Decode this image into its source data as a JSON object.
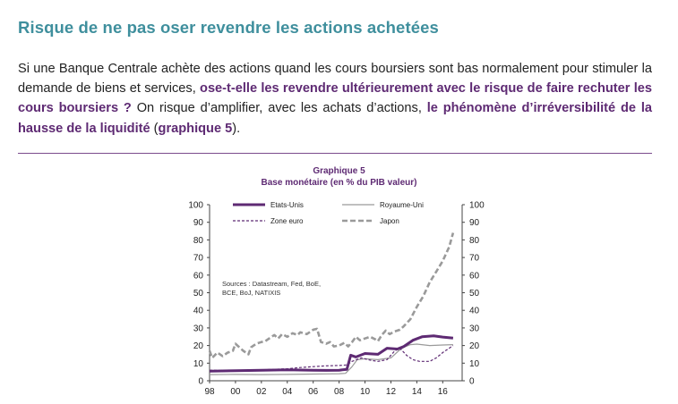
{
  "title": "Risque de ne pas oser revendre les actions achetées",
  "paragraph": {
    "p1": "Si une Banque Centrale achète des actions quand les cours boursiers sont bas normalement pour stimuler la demande de biens et services, ",
    "h1": "ose-t-elle les revendre ultérieurement avec le risque de faire rechuter les cours boursiers ?",
    "p2": " On risque d’amplifier, avec les achats d’actions, ",
    "h2": "le phénomène d’irréversibilité de la hausse de la liquidité",
    "p3": " (",
    "h3": "graphique 5",
    "p4": ")."
  },
  "chart_data": {
    "type": "line",
    "title": "Graphique 5",
    "subtitle": "Base monétaire (en % du PIB valeur)",
    "source_note_line1": "Sources : Datastream, Fed, BoE,",
    "source_note_line2": "BCE, BoJ, NATIXIS",
    "xlim": [
      1998,
      2017.5
    ],
    "ylim": [
      0,
      100
    ],
    "x_ticks": [
      1998,
      2000,
      2002,
      2004,
      2006,
      2008,
      2010,
      2012,
      2014,
      2016
    ],
    "x_tick_labels": [
      "98",
      "00",
      "02",
      "04",
      "06",
      "08",
      "10",
      "12",
      "14",
      "16"
    ],
    "y_ticks": [
      0,
      10,
      20,
      30,
      40,
      50,
      60,
      70,
      80,
      90,
      100
    ],
    "y_tick_labels": [
      "0",
      "10",
      "20",
      "30",
      "40",
      "50",
      "60",
      "70",
      "80",
      "90",
      "100"
    ],
    "series": [
      {
        "name": "Etats-Unis",
        "color": "#5e2a73",
        "style": "solid-thick",
        "points": [
          [
            1998,
            5.5
          ],
          [
            2000,
            5.7
          ],
          [
            2002,
            6.0
          ],
          [
            2004,
            6.2
          ],
          [
            2006,
            6.0
          ],
          [
            2007,
            5.9
          ],
          [
            2008,
            6.0
          ],
          [
            2008.6,
            6.5
          ],
          [
            2008.9,
            14.5
          ],
          [
            2009.3,
            13.5
          ],
          [
            2010,
            15.5
          ],
          [
            2011,
            15.0
          ],
          [
            2011.7,
            18.5
          ],
          [
            2012.5,
            18.0
          ],
          [
            2013,
            19.5
          ],
          [
            2013.7,
            23
          ],
          [
            2014.4,
            25
          ],
          [
            2015.3,
            25.5
          ],
          [
            2016,
            24.8
          ],
          [
            2016.8,
            24.2
          ]
        ]
      },
      {
        "name": "Royaume-Uni",
        "color": "#9a9a9a",
        "style": "solid-thin",
        "points": [
          [
            1998,
            3.5
          ],
          [
            2000,
            3.6
          ],
          [
            2002,
            3.5
          ],
          [
            2004,
            3.6
          ],
          [
            2006,
            3.8
          ],
          [
            2007,
            3.9
          ],
          [
            2008,
            4.0
          ],
          [
            2008.5,
            4.2
          ],
          [
            2009,
            8
          ],
          [
            2009.4,
            12
          ],
          [
            2010,
            12.5
          ],
          [
            2011,
            12
          ],
          [
            2012,
            13
          ],
          [
            2012.6,
            17
          ],
          [
            2013,
            19
          ],
          [
            2013.5,
            20.5
          ],
          [
            2014,
            20.8
          ],
          [
            2015,
            20
          ],
          [
            2016,
            20.3
          ],
          [
            2016.8,
            20.5
          ]
        ]
      },
      {
        "name": "Zone euro",
        "color": "#5e2a73",
        "style": "dashed",
        "points": [
          [
            1998,
            6
          ],
          [
            2000,
            5.8
          ],
          [
            2002,
            6.2
          ],
          [
            2004,
            6.8
          ],
          [
            2005,
            7.5
          ],
          [
            2006,
            8
          ],
          [
            2007,
            8.5
          ],
          [
            2008,
            8.7
          ],
          [
            2008.6,
            9
          ],
          [
            2009,
            11
          ],
          [
            2009.7,
            13
          ],
          [
            2010.5,
            11.5
          ],
          [
            2011,
            11
          ],
          [
            2011.7,
            12
          ],
          [
            2012.3,
            17
          ],
          [
            2012.7,
            18.5
          ],
          [
            2013.2,
            14.5
          ],
          [
            2013.7,
            12
          ],
          [
            2014.2,
            11
          ],
          [
            2015,
            11
          ],
          [
            2015.5,
            13
          ],
          [
            2016,
            16
          ],
          [
            2016.8,
            20
          ]
        ]
      },
      {
        "name": "Japon",
        "color": "#9a9a9a",
        "style": "dashed-thick",
        "points": [
          [
            1998,
            17
          ],
          [
            1998.2,
            13
          ],
          [
            1998.6,
            16
          ],
          [
            1999,
            14
          ],
          [
            1999.4,
            16
          ],
          [
            1999.8,
            17
          ],
          [
            2000,
            21
          ],
          [
            2000.3,
            19
          ],
          [
            2000.6,
            17
          ],
          [
            2001,
            15
          ],
          [
            2001.2,
            19
          ],
          [
            2001.6,
            21
          ],
          [
            2002,
            22
          ],
          [
            2002.3,
            22.5
          ],
          [
            2002.6,
            24
          ],
          [
            2003,
            26
          ],
          [
            2003.3,
            24
          ],
          [
            2003.6,
            26.5
          ],
          [
            2004,
            25
          ],
          [
            2004.4,
            27
          ],
          [
            2004.8,
            26
          ],
          [
            2005,
            27.5
          ],
          [
            2005.5,
            26.5
          ],
          [
            2006,
            29
          ],
          [
            2006.3,
            29.5
          ],
          [
            2006.6,
            22
          ],
          [
            2007,
            21
          ],
          [
            2007.3,
            22
          ],
          [
            2007.6,
            19.5
          ],
          [
            2008,
            20
          ],
          [
            2008.4,
            21.5
          ],
          [
            2008.7,
            19.5
          ],
          [
            2009,
            22
          ],
          [
            2009.3,
            25
          ],
          [
            2009.6,
            23
          ],
          [
            2010,
            24
          ],
          [
            2010.4,
            25
          ],
          [
            2010.8,
            23.5
          ],
          [
            2011,
            22.5
          ],
          [
            2011.3,
            26
          ],
          [
            2011.6,
            28.5
          ],
          [
            2011.9,
            26.5
          ],
          [
            2012.3,
            28
          ],
          [
            2012.7,
            29
          ],
          [
            2013,
            31
          ],
          [
            2013.5,
            35
          ],
          [
            2014,
            42
          ],
          [
            2014.5,
            48
          ],
          [
            2015,
            56
          ],
          [
            2015.5,
            62
          ],
          [
            2016,
            68
          ],
          [
            2016.5,
            76
          ],
          [
            2016.8,
            84
          ]
        ]
      }
    ]
  }
}
